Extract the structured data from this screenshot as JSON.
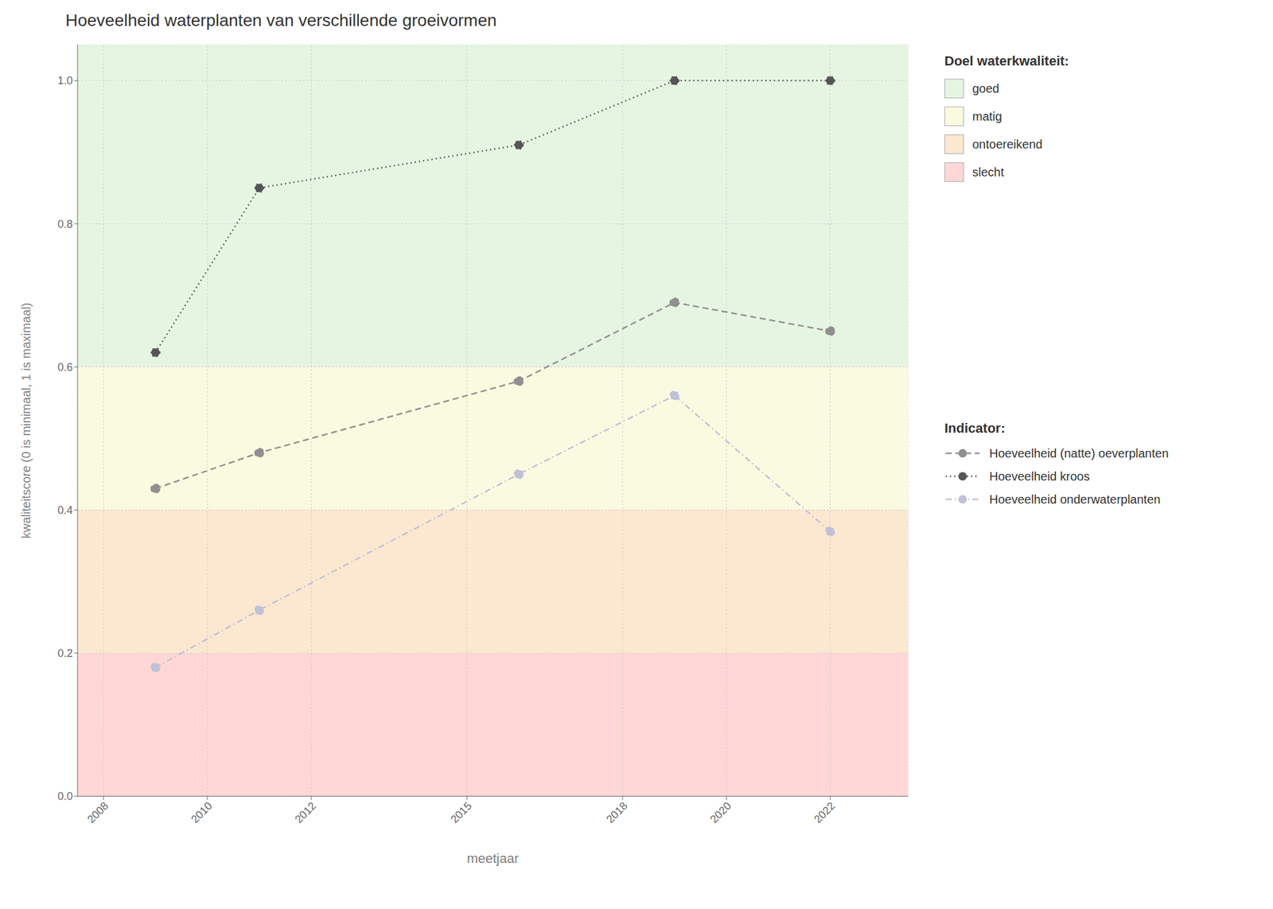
{
  "chart_data": {
    "type": "line",
    "title": "Hoeveelheid waterplanten van verschillende groeivormen",
    "x_label": "meetjaar",
    "y_label": "kwaliteitscore (0 is minimaal, 1 is maximaal)",
    "x": [
      2009,
      2011,
      2016,
      2019,
      2022
    ],
    "xlim": [
      2007.5,
      2023.5
    ],
    "xticks": [
      2008,
      2010,
      2012,
      2015,
      2018,
      2020,
      2022
    ],
    "ylim": [
      0.0,
      1.05
    ],
    "yticks": [
      {
        "value": 0.0,
        "label": "0.0"
      },
      0.2,
      0.4,
      0.6,
      0.8,
      {
        "value": 1.0,
        "label": "1.0"
      }
    ],
    "grid": true,
    "marker": "circle",
    "bands_title": "Doel waterkwaliteit:",
    "bands": [
      {
        "label": "goed",
        "color": "#e6f5e1",
        "ymin": 0.6,
        "ymax": 1.05
      },
      {
        "label": "matig",
        "color": "#fafae0",
        "ymin": 0.4,
        "ymax": 0.6
      },
      {
        "label": "ontoereikend",
        "color": "#fce8d0",
        "ymin": 0.2,
        "ymax": 0.4
      },
      {
        "label": "slecht",
        "color": "#ffd7d7",
        "ymin": 0.0,
        "ymax": 0.2
      }
    ],
    "legend_title": "Indicator:",
    "series": [
      {
        "name": "Hoeveelheid (natte) oeverplanten",
        "color": "#909090",
        "line_style": "dashed",
        "values": [
          0.43,
          0.48,
          0.58,
          0.69,
          0.65
        ]
      },
      {
        "name": "Hoeveelheid kroos",
        "color": "#555555",
        "line_style": "dotted",
        "values": [
          0.62,
          0.85,
          0.91,
          1.0,
          1.0
        ]
      },
      {
        "name": "Hoeveelheid onderwaterplanten",
        "color": "#c0c0d8",
        "line_style": "dashdot",
        "values": [
          0.18,
          0.26,
          0.45,
          0.56,
          0.37
        ]
      }
    ]
  }
}
